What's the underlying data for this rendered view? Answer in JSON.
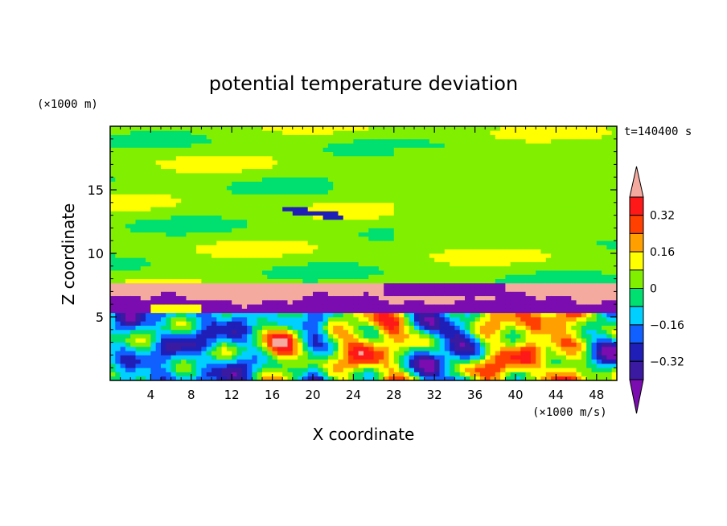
{
  "chart_data": {
    "type": "heatmap",
    "title": "potential temperature deviation",
    "xlabel": "X coordinate",
    "ylabel": "Z coordinate",
    "x_unit_label": "(×1000 m/s)",
    "y_unit_label": "(×1000 m)",
    "time_label": "t=140400 s",
    "xlim": [
      0,
      50
    ],
    "ylim": [
      0,
      20
    ],
    "x_ticks": [
      4,
      8,
      12,
      16,
      20,
      24,
      28,
      32,
      36,
      40,
      44,
      48
    ],
    "y_ticks": [
      5,
      10,
      15
    ],
    "colorbar": {
      "tick_labels": [
        "0.32",
        "0.16",
        "0",
        "-0.16",
        "-0.32"
      ],
      "tick_values": [
        0.32,
        0.16,
        0,
        -0.16,
        -0.32
      ],
      "levels": [
        -0.4,
        -0.32,
        -0.24,
        -0.16,
        -0.08,
        0,
        0.08,
        0.16,
        0.24,
        0.32,
        0.4
      ],
      "colors": [
        "#7a0cb0",
        "#3a1aa0",
        "#1f1fb8",
        "#1060ff",
        "#00d0ff",
        "#00e070",
        "#80f000",
        "#ffff00",
        "#ffa000",
        "#ff4000",
        "#ff1818",
        "#f5aaa0"
      ],
      "extend": "both"
    },
    "regions": [
      {
        "description": "upper layer",
        "z_range": [
          7.5,
          20
        ],
        "dominant_values": [
          0.0,
          0.08
        ]
      },
      {
        "description": "inversion band",
        "z_range": [
          5.5,
          7.5
        ],
        "dominant_values": [
          0.4,
          -0.4
        ]
      },
      {
        "description": "convective layer",
        "z_range": [
          0,
          5.5
        ],
        "value_range": [
          -0.4,
          0.4
        ]
      }
    ]
  }
}
